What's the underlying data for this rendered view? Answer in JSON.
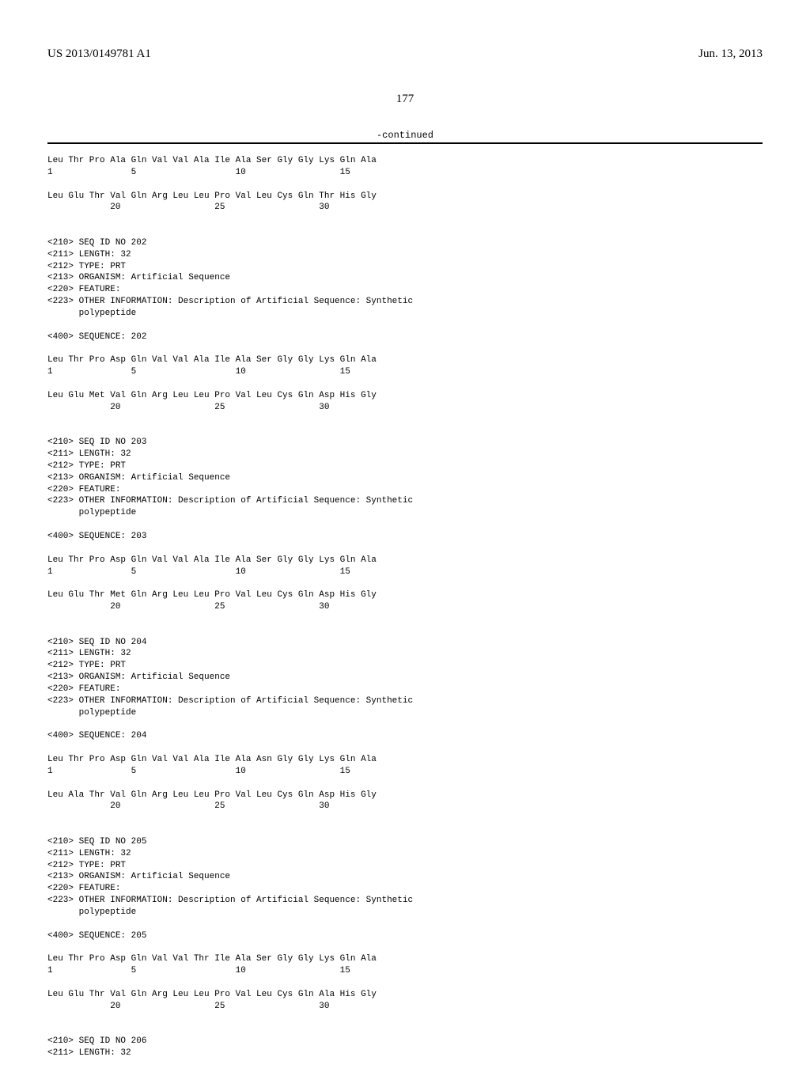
{
  "header": {
    "publication_number": "US 2013/0149781 A1",
    "publication_date": "Jun. 13, 2013"
  },
  "page_number": "177",
  "continued_label": "-continued",
  "sequence_text": "Leu Thr Pro Ala Gln Val Val Ala Ile Ala Ser Gly Gly Lys Gln Ala\n1               5                   10                  15\n\nLeu Glu Thr Val Gln Arg Leu Leu Pro Val Leu Cys Gln Thr His Gly\n            20                  25                  30\n\n\n<210> SEQ ID NO 202\n<211> LENGTH: 32\n<212> TYPE: PRT\n<213> ORGANISM: Artificial Sequence\n<220> FEATURE:\n<223> OTHER INFORMATION: Description of Artificial Sequence: Synthetic\n      polypeptide\n\n<400> SEQUENCE: 202\n\nLeu Thr Pro Asp Gln Val Val Ala Ile Ala Ser Gly Gly Lys Gln Ala\n1               5                   10                  15\n\nLeu Glu Met Val Gln Arg Leu Leu Pro Val Leu Cys Gln Asp His Gly\n            20                  25                  30\n\n\n<210> SEQ ID NO 203\n<211> LENGTH: 32\n<212> TYPE: PRT\n<213> ORGANISM: Artificial Sequence\n<220> FEATURE:\n<223> OTHER INFORMATION: Description of Artificial Sequence: Synthetic\n      polypeptide\n\n<400> SEQUENCE: 203\n\nLeu Thr Pro Asp Gln Val Val Ala Ile Ala Ser Gly Gly Lys Gln Ala\n1               5                   10                  15\n\nLeu Glu Thr Met Gln Arg Leu Leu Pro Val Leu Cys Gln Asp His Gly\n            20                  25                  30\n\n\n<210> SEQ ID NO 204\n<211> LENGTH: 32\n<212> TYPE: PRT\n<213> ORGANISM: Artificial Sequence\n<220> FEATURE:\n<223> OTHER INFORMATION: Description of Artificial Sequence: Synthetic\n      polypeptide\n\n<400> SEQUENCE: 204\n\nLeu Thr Pro Asp Gln Val Val Ala Ile Ala Asn Gly Gly Lys Gln Ala\n1               5                   10                  15\n\nLeu Ala Thr Val Gln Arg Leu Leu Pro Val Leu Cys Gln Asp His Gly\n            20                  25                  30\n\n\n<210> SEQ ID NO 205\n<211> LENGTH: 32\n<212> TYPE: PRT\n<213> ORGANISM: Artificial Sequence\n<220> FEATURE:\n<223> OTHER INFORMATION: Description of Artificial Sequence: Synthetic\n      polypeptide\n\n<400> SEQUENCE: 205\n\nLeu Thr Pro Asp Gln Val Val Thr Ile Ala Ser Gly Gly Lys Gln Ala\n1               5                   10                  15\n\nLeu Glu Thr Val Gln Arg Leu Leu Pro Val Leu Cys Gln Ala His Gly\n            20                  25                  30\n\n\n<210> SEQ ID NO 206\n<211> LENGTH: 32"
}
